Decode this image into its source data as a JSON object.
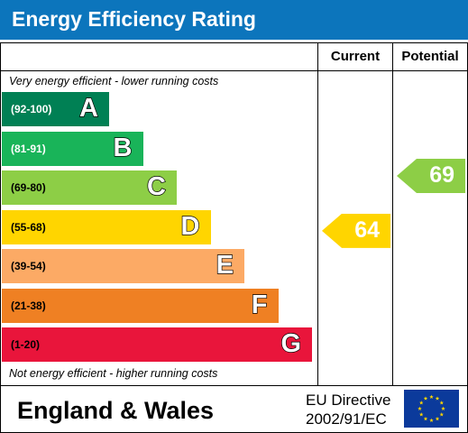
{
  "title": "Energy Efficiency Rating",
  "columns": {
    "current": "Current",
    "potential": "Potential"
  },
  "top_note": "Very energy efficient - lower running costs",
  "bottom_note": "Not energy efficient - higher running costs",
  "footer": {
    "region": "England & Wales",
    "directive_line1": "EU Directive",
    "directive_line2": "2002/91/EC",
    "flag_icon": "eu-flag-icon"
  },
  "colors": {
    "header": "#0c75bc",
    "text_dark": "#000000"
  },
  "chart_data": {
    "type": "bar",
    "categories": [
      "A",
      "B",
      "C",
      "D",
      "E",
      "F",
      "G"
    ],
    "ranges": [
      "(92-100)",
      "(81-91)",
      "(69-80)",
      "(55-68)",
      "(39-54)",
      "(21-38)",
      "(1-20)"
    ],
    "colors": [
      "#008054",
      "#19b459",
      "#8dce46",
      "#ffd500",
      "#fcaa65",
      "#ef8023",
      "#e9153b"
    ],
    "range_text_colors": [
      "#ffffff",
      "#ffffff",
      "#000000",
      "#000000",
      "#000000",
      "#000000",
      "#000000"
    ],
    "series": [
      {
        "name": "Current",
        "value": 64,
        "band": "D",
        "color": "#ffd500"
      },
      {
        "name": "Potential",
        "value": 69,
        "band": "C",
        "color": "#8dce46"
      }
    ]
  }
}
